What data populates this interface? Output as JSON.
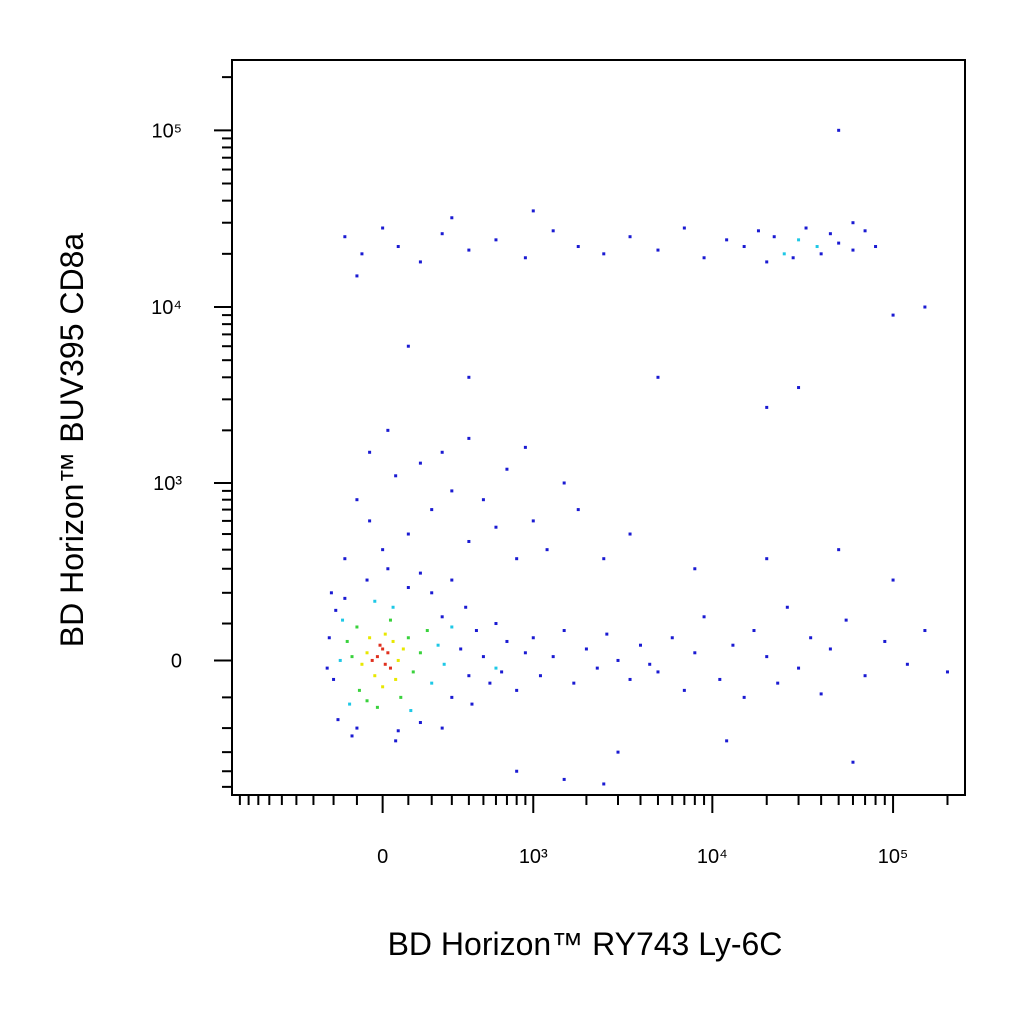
{
  "chart_data": {
    "type": "scatter",
    "xlabel": "BD Horizon™ RY743  Ly-6C",
    "ylabel": "BD Horizon™ BUV395  CD8a",
    "xscale": "biexponential",
    "yscale": "biexponential",
    "xlim": [
      -1000,
      250000
    ],
    "ylim": [
      -560,
      250000
    ],
    "xticks": [
      0,
      {
        "value": 1000,
        "label": "10³"
      },
      {
        "value": 10000,
        "label": "10⁴"
      },
      {
        "value": 100000,
        "label": "10⁵"
      }
    ],
    "yticks": [
      0,
      {
        "value": 1000,
        "label": "10³"
      },
      {
        "value": 10000,
        "label": "10⁴"
      },
      {
        "value": 100000,
        "label": "10⁵"
      }
    ],
    "xminor": [
      -900,
      -800,
      -700,
      -600,
      -500,
      -400,
      -300,
      -200,
      -100,
      100,
      200,
      300,
      400,
      500,
      600,
      700,
      800,
      900,
      2000,
      3000,
      4000,
      5000,
      6000,
      7000,
      8000,
      9000,
      20000,
      30000,
      40000,
      50000,
      60000,
      70000,
      80000,
      90000,
      200000
    ],
    "yminor": [
      -500,
      -400,
      -300,
      -200,
      -100,
      100,
      200,
      300,
      400,
      500,
      600,
      700,
      800,
      900,
      2000,
      3000,
      4000,
      5000,
      6000,
      7000,
      8000,
      9000,
      20000,
      30000,
      40000,
      50000,
      60000,
      70000,
      80000,
      90000,
      200000
    ],
    "series": [
      {
        "color": "#1a1ad2",
        "x": [
          -200,
          -220,
          250,
          300,
          350,
          400,
          450,
          500,
          550,
          -180,
          -100,
          60,
          150,
          -150,
          100,
          200,
          -60,
          20,
          150,
          300,
          250,
          -190,
          380,
          420,
          600,
          650,
          700,
          800,
          900,
          1000,
          1100,
          1300,
          1500,
          1700,
          2000,
          2300,
          2600,
          3000,
          3500,
          4000,
          4500,
          -230,
          -210,
          50,
          -120,
          0,
          100,
          -50,
          200,
          400,
          600,
          300,
          50,
          150,
          500,
          800,
          1000,
          -100,
          250,
          700,
          1200,
          1800,
          2500,
          3500,
          20,
          400,
          1500,
          -150,
          900,
          5000,
          6000,
          7000,
          8000,
          9000,
          11000,
          13000,
          15000,
          17000,
          20000,
          23000,
          26000,
          30000,
          35000,
          40000,
          45000,
          55000,
          70000,
          90000,
          120000,
          150000,
          200000,
          8000,
          20000,
          50000,
          100000,
          3000,
          12000,
          60000,
          800,
          1500,
          2500,
          -150,
          -80,
          0,
          60,
          150,
          250,
          400,
          600,
          900,
          1300,
          1800,
          2500,
          3500,
          5000,
          7000,
          9000,
          12000,
          15000,
          18000,
          20000,
          22000,
          28000,
          33000,
          40000,
          45000,
          50000,
          60000,
          70000,
          80000,
          -100,
          300,
          1000,
          60000,
          50000,
          100000,
          150000,
          -50,
          5000,
          20000,
          30000,
          100,
          400
        ],
        "values": [
          -50,
          60,
          120,
          -100,
          30,
          -40,
          80,
          10,
          -60,
          -170,
          -200,
          -210,
          -180,
          180,
          220,
          200,
          250,
          300,
          280,
          250,
          -200,
          140,
          150,
          -120,
          100,
          -30,
          50,
          -80,
          20,
          60,
          -40,
          10,
          80,
          -60,
          30,
          -20,
          70,
          0,
          -50,
          40,
          -10,
          -20,
          200,
          -250,
          -230,
          400,
          500,
          600,
          700,
          450,
          550,
          900,
          1100,
          1300,
          800,
          350,
          600,
          800,
          1500,
          1200,
          400,
          700,
          350,
          500,
          2000,
          1800,
          1000,
          350,
          1600,
          -30,
          60,
          -80,
          20,
          120,
          -50,
          40,
          -100,
          80,
          10,
          -60,
          150,
          -20,
          60,
          -90,
          30,
          110,
          -40,
          50,
          -10,
          80,
          -30,
          300,
          350,
          400,
          250,
          -300,
          -250,
          -350,
          -400,
          -450,
          -480,
          25000,
          20000,
          28000,
          22000,
          18000,
          26000,
          21000,
          24000,
          19000,
          27000,
          22000,
          20000,
          25000,
          21000,
          28000,
          19000,
          24000,
          22000,
          27000,
          18000,
          25000,
          19000,
          28000,
          20000,
          26000,
          23000,
          21000,
          27000,
          22000,
          15000,
          32000,
          35000,
          30000,
          100000,
          9000,
          10000,
          1500,
          4000,
          2700,
          3500,
          6000,
          4000
        ]
      },
      {
        "color": "#1ec8e6",
        "x": [
          -170,
          200,
          -130,
          230,
          40,
          -160,
          260,
          110,
          -30,
          300,
          30000,
          25000,
          38000,
          600
        ],
        "values": [
          0,
          -60,
          -120,
          40,
          150,
          110,
          -10,
          -140,
          170,
          90,
          24000,
          20000,
          22000,
          -20
        ]
      },
      {
        "color": "#39d23c",
        "x": [
          -120,
          100,
          -90,
          120,
          -140,
          30,
          -60,
          150,
          -100,
          70,
          180,
          -20
        ],
        "values": [
          10,
          60,
          -80,
          -30,
          50,
          110,
          -110,
          20,
          90,
          -100,
          80,
          -130
        ]
      },
      {
        "color": "#e8e800",
        "x": [
          -60,
          40,
          -30,
          60,
          -80,
          10,
          50,
          -50,
          80,
          0
        ],
        "values": [
          20,
          50,
          -40,
          0,
          -10,
          70,
          -50,
          60,
          30,
          -70
        ]
      },
      {
        "color": "#e0301e",
        "x": [
          -20,
          0,
          10,
          -40,
          20,
          -10,
          30
        ],
        "values": [
          10,
          30,
          -10,
          0,
          20,
          40,
          -20
        ]
      }
    ]
  }
}
